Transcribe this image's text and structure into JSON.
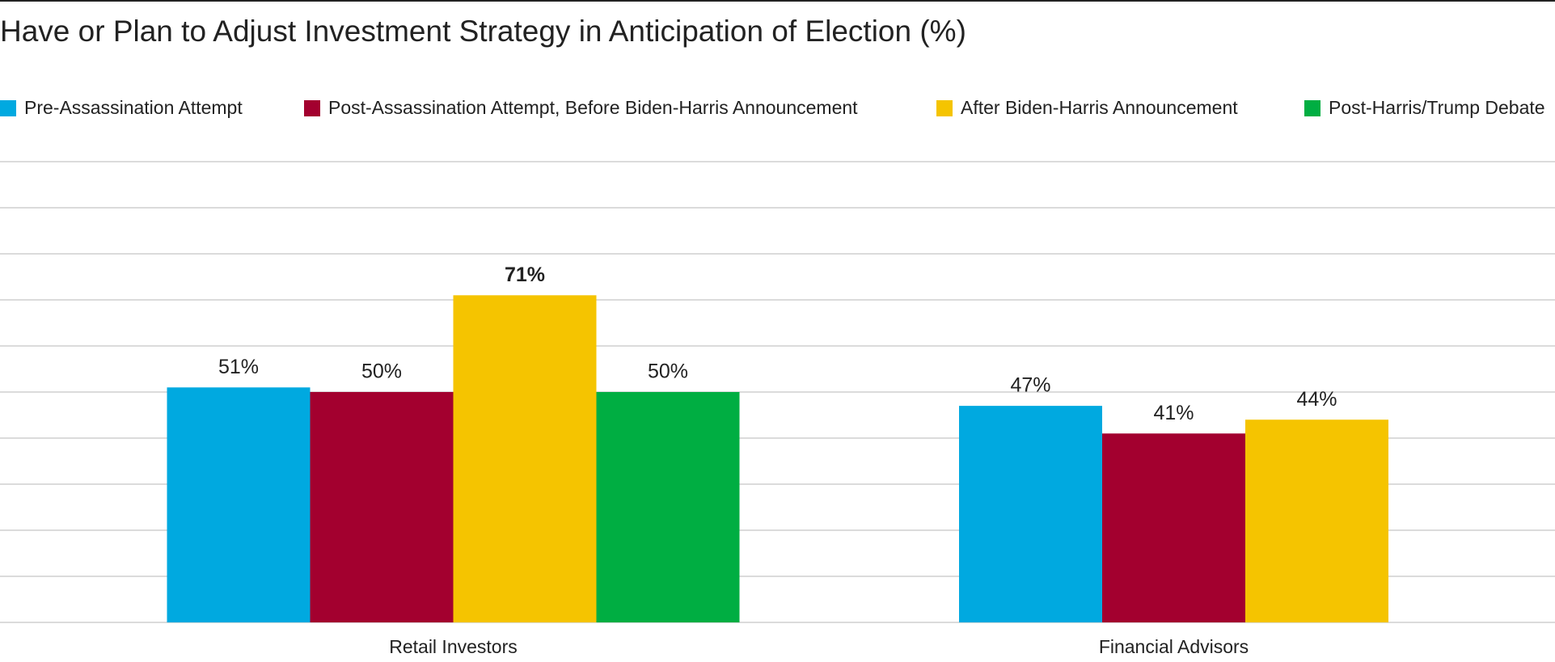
{
  "chart_data": {
    "type": "bar",
    "title": "Have or Plan to Adjust Investment Strategy in Anticipation of Election (%)",
    "categories": [
      "Retail Investors",
      "Financial Advisors"
    ],
    "series": [
      {
        "name": "Pre-Assassination Attempt",
        "color": "#00a9e0",
        "values": [
          51,
          47
        ],
        "value_labels": [
          "51%",
          "47%"
        ]
      },
      {
        "name": "Post-Assassination Attempt, Before Biden-Harris Announcement",
        "color": "#a3002f",
        "values": [
          50,
          41
        ],
        "value_labels": [
          "50%",
          "41%"
        ]
      },
      {
        "name": "After Biden-Harris Announcement",
        "color": "#f5c400",
        "values": [
          71,
          44
        ],
        "value_labels": [
          "71%",
          "44%"
        ]
      },
      {
        "name": "Post-Harris/Trump Debate",
        "color": "#00ae42",
        "values": [
          50,
          null
        ],
        "value_labels": [
          "50%",
          null
        ]
      }
    ],
    "ylim": [
      0,
      100
    ],
    "yticks": [
      0,
      10,
      20,
      30,
      40,
      50,
      60,
      70,
      80,
      90,
      100
    ],
    "grid": true
  }
}
